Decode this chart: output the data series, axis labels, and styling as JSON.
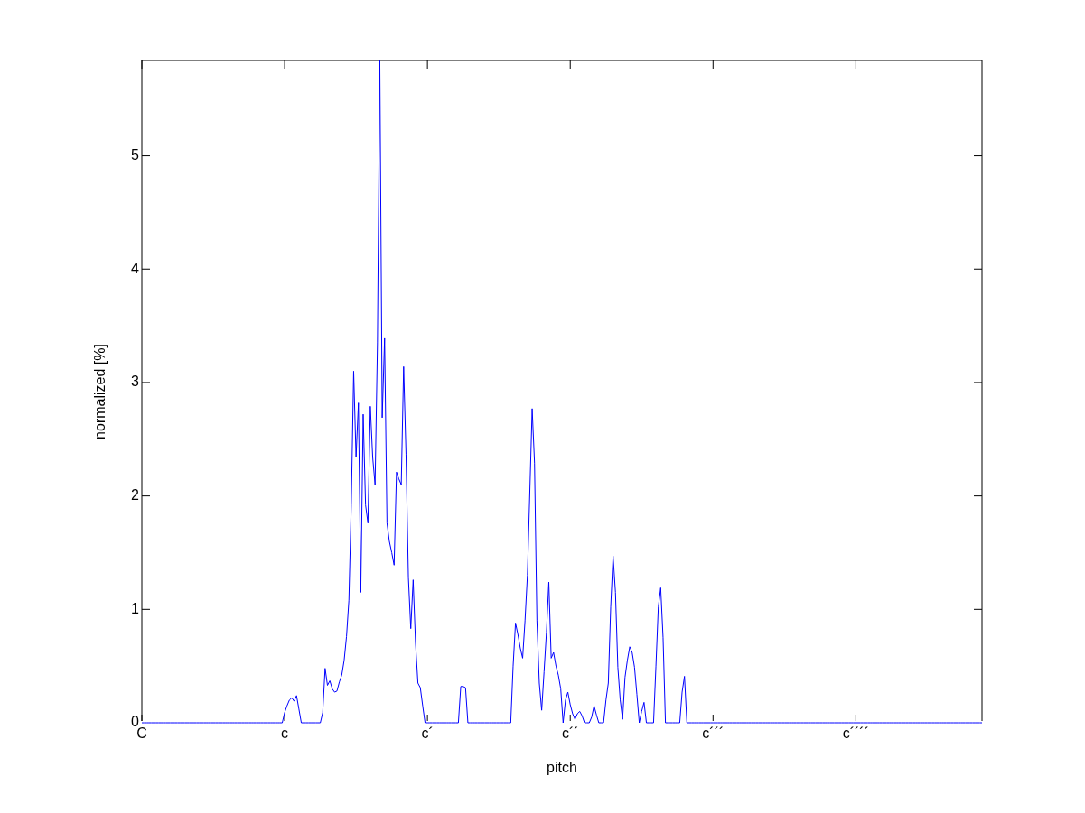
{
  "chart_data": {
    "type": "line",
    "xlabel": "pitch",
    "ylabel": "normalized [%]",
    "categories": [
      "C",
      null,
      null,
      null,
      null,
      null,
      null,
      null,
      null,
      null,
      null,
      null,
      null,
      null,
      null,
      null,
      null,
      null,
      null,
      null,
      null,
      null,
      null,
      null,
      null,
      null,
      null,
      null,
      null,
      null,
      null,
      null,
      null,
      null,
      null,
      null,
      null,
      null,
      null,
      null,
      null,
      null,
      null,
      null,
      null,
      null,
      null,
      null,
      null,
      null,
      null,
      null,
      null,
      null,
      null,
      null,
      null,
      null,
      null,
      null,
      "c",
      null,
      null,
      null,
      null,
      null,
      null,
      null,
      null,
      null,
      null,
      null,
      null,
      null,
      null,
      null,
      null,
      null,
      null,
      null,
      null,
      null,
      null,
      null,
      null,
      null,
      null,
      null,
      null,
      null,
      null,
      null,
      null,
      null,
      null,
      null,
      null,
      null,
      null,
      null,
      null,
      null,
      null,
      null,
      null,
      null,
      null,
      null,
      null,
      null,
      null,
      null,
      null,
      null,
      null,
      null,
      null,
      null,
      null,
      null,
      "c´",
      null,
      null,
      null,
      null,
      null,
      null,
      null,
      null,
      null,
      null,
      null,
      null,
      null,
      null,
      null,
      null,
      null,
      null,
      null,
      null,
      null,
      null,
      null,
      null,
      null,
      null,
      null,
      null,
      null,
      null,
      null,
      null,
      null,
      null,
      null,
      null,
      null,
      null,
      null,
      null,
      null,
      null,
      null,
      null,
      null,
      null,
      null,
      null,
      null,
      null,
      null,
      null,
      null,
      null,
      null,
      null,
      null,
      null,
      null,
      "c´´",
      null,
      null,
      null,
      null,
      null,
      null,
      null,
      null,
      null,
      null,
      null,
      null,
      null,
      null,
      null,
      null,
      null,
      null,
      null,
      null,
      null,
      null,
      null,
      null,
      null,
      null,
      null,
      null,
      null,
      null,
      null,
      null,
      null,
      null,
      null,
      null,
      null,
      null,
      null,
      null,
      null,
      null,
      null,
      null,
      null,
      null,
      null,
      null,
      null,
      null,
      null,
      null,
      null,
      null,
      null,
      null,
      null,
      null,
      null,
      "c´´´",
      null,
      null,
      null,
      null,
      null,
      null,
      null,
      null,
      null,
      null,
      null,
      null,
      null,
      null,
      null,
      null,
      null,
      null,
      null,
      null,
      null,
      null,
      null,
      null,
      null,
      null,
      null,
      null,
      null,
      null,
      null,
      null,
      null,
      null,
      null,
      null,
      null,
      null,
      null,
      null,
      null,
      null,
      null,
      null,
      null,
      null,
      null,
      null,
      null,
      null,
      null,
      null,
      null,
      null,
      null,
      null,
      null,
      null,
      null,
      "c´´´´",
      null,
      null,
      null,
      null,
      null,
      null,
      null,
      null,
      null,
      null,
      null,
      null,
      null,
      null,
      null,
      null,
      null,
      null,
      null,
      null,
      null,
      null,
      null,
      null,
      null,
      null,
      null,
      null,
      null,
      null,
      null,
      null,
      null,
      null,
      null,
      null,
      null,
      null,
      null,
      null,
      null,
      null,
      null,
      null,
      null,
      null,
      null,
      null,
      null,
      null,
      null,
      null,
      null
    ],
    "ylim": [
      0,
      5.84
    ],
    "yticks": [
      0,
      1,
      2,
      3,
      4,
      5
    ],
    "grid": false,
    "marker": "none",
    "line_style": "solid",
    "series": [
      {
        "color": "#0000ff",
        "values": [
          0,
          0,
          0,
          0,
          0,
          0,
          0,
          0,
          0,
          0,
          0,
          0,
          0,
          0,
          0,
          0,
          0,
          0,
          0,
          0,
          0,
          0,
          0,
          0,
          0,
          0,
          0,
          0,
          0,
          0,
          0,
          0,
          0,
          0,
          0,
          0,
          0,
          0,
          0,
          0,
          0,
          0,
          0,
          0,
          0,
          0,
          0,
          0,
          0,
          0,
          0,
          0,
          0,
          0,
          0,
          0,
          0,
          0,
          0,
          0,
          0.09,
          0.15,
          0.2,
          0.22,
          0.19,
          0.24,
          0.12,
          0,
          0,
          0,
          0,
          0,
          0,
          0,
          0,
          0,
          0.09,
          0.48,
          0.33,
          0.37,
          0.3,
          0.27,
          0.28,
          0.36,
          0.42,
          0.55,
          0.76,
          1.08,
          1.92,
          3.1,
          2.34,
          2.82,
          1.15,
          2.72,
          1.92,
          1.76,
          2.79,
          2.34,
          2.1,
          3.35,
          5.84,
          2.69,
          3.39,
          1.76,
          1.6,
          1.5,
          1.39,
          2.21,
          2.15,
          2.1,
          3.14,
          2.37,
          1.28,
          0.83,
          1.26,
          0.7,
          0.35,
          0.31,
          0.15,
          0,
          0,
          0,
          0,
          0,
          0,
          0,
          0,
          0,
          0,
          0,
          0,
          0,
          0,
          0,
          0.32,
          0.32,
          0.31,
          0,
          0,
          0,
          0,
          0,
          0,
          0,
          0,
          0,
          0,
          0,
          0,
          0,
          0,
          0,
          0,
          0,
          0,
          0,
          0.5,
          0.88,
          0.78,
          0.66,
          0.57,
          0.9,
          1.3,
          2.02,
          2.77,
          2.29,
          0.9,
          0.35,
          0.11,
          0.45,
          0.8,
          1.24,
          0.57,
          0.62,
          0.5,
          0.42,
          0.3,
          0,
          0.2,
          0.27,
          0.16,
          0.08,
          0.03,
          0.08,
          0.1,
          0.06,
          0,
          0,
          0,
          0.05,
          0.15,
          0.07,
          0,
          0,
          0,
          0.2,
          0.35,
          1.02,
          1.47,
          1.15,
          0.49,
          0.2,
          0.03,
          0.4,
          0.55,
          0.67,
          0.62,
          0.49,
          0.25,
          0,
          0.1,
          0.18,
          0,
          0,
          0,
          0,
          0.5,
          1.02,
          1.19,
          0.75,
          0,
          0,
          0,
          0,
          0,
          0,
          0,
          0.27,
          0.41,
          0,
          0,
          0,
          0,
          0,
          0,
          0,
          0,
          0,
          0,
          0,
          0,
          0,
          0,
          0,
          0,
          0,
          0,
          0,
          0,
          0,
          0,
          0,
          0,
          0,
          0,
          0,
          0,
          0,
          0,
          0,
          0,
          0,
          0,
          0,
          0,
          0,
          0,
          0,
          0,
          0,
          0,
          0,
          0,
          0,
          0,
          0,
          0,
          0,
          0,
          0,
          0,
          0,
          0,
          0,
          0,
          0,
          0,
          0,
          0,
          0,
          0,
          0,
          0,
          0,
          0,
          0,
          0,
          0,
          0,
          0,
          0,
          0,
          0,
          0,
          0,
          0,
          0,
          0,
          0,
          0,
          0,
          0,
          0,
          0,
          0,
          0,
          0,
          0,
          0,
          0,
          0,
          0,
          0,
          0,
          0,
          0,
          0,
          0,
          0,
          0,
          0,
          0,
          0,
          0,
          0,
          0,
          0,
          0,
          0,
          0,
          0,
          0,
          0,
          0,
          0,
          0,
          0,
          0,
          0,
          0,
          0,
          0,
          0,
          0
        ]
      }
    ]
  }
}
